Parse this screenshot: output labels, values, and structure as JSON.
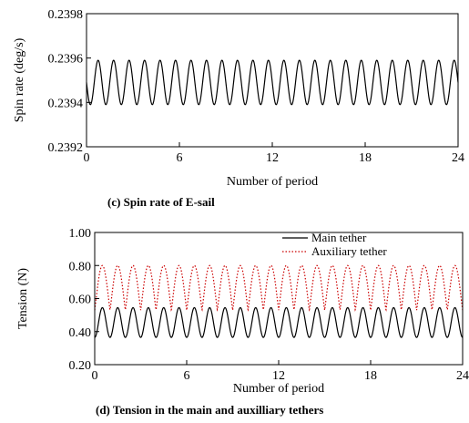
{
  "chart_data": [
    {
      "type": "line",
      "caption": "(c) Spin rate of E-sail",
      "xlabel": "Number of period",
      "ylabel": "Spin rate (deg/s)",
      "xlim": [
        0,
        24
      ],
      "ylim": [
        0.2392,
        0.2398
      ],
      "x_ticks": [
        0,
        6,
        12,
        18,
        24
      ],
      "y_ticks": [
        0.2392,
        0.2394,
        0.2396,
        0.2398
      ],
      "x_tick_labels": [
        "0",
        "6",
        "12",
        "18",
        "24"
      ],
      "y_tick_labels": [
        "0.2392",
        "0.2394",
        "0.2396",
        "0.2398"
      ],
      "grid": false,
      "series": [
        {
          "color": "#000000",
          "dash": "solid",
          "oscillation": {
            "min": 0.23939,
            "max": 0.23959,
            "cycles": 24,
            "start_phase": "middle-descending"
          }
        }
      ]
    },
    {
      "type": "line",
      "caption": "(d) Tension in the main and auxilliary tethers",
      "xlabel": "Number of period",
      "ylabel": "Tension (N)",
      "xlim": [
        0,
        24
      ],
      "ylim": [
        0.2,
        1.0
      ],
      "x_ticks": [
        0,
        6,
        12,
        18,
        24
      ],
      "y_ticks": [
        0.2,
        0.4,
        0.6,
        0.8,
        1.0
      ],
      "x_tick_labels": [
        "0",
        "6",
        "12",
        "18",
        "24"
      ],
      "y_tick_labels": [
        "0.20",
        "0.40",
        "0.60",
        "0.80",
        "1.00"
      ],
      "grid": false,
      "legend": {
        "placement": "top-right"
      },
      "series": [
        {
          "name": "Main tether",
          "color": "#000000",
          "dash": "solid",
          "oscillation": {
            "min": 0.365,
            "max": 0.545,
            "cycles": 24,
            "start_phase": "minimum"
          }
        },
        {
          "name": "Auxiliary tether",
          "color": "#cc0000",
          "dash": "dotted",
          "oscillation": {
            "min": 0.53,
            "max": 0.8,
            "cycles": 24,
            "start_phase": "minimum",
            "shape": "flat-topped"
          }
        }
      ]
    }
  ]
}
